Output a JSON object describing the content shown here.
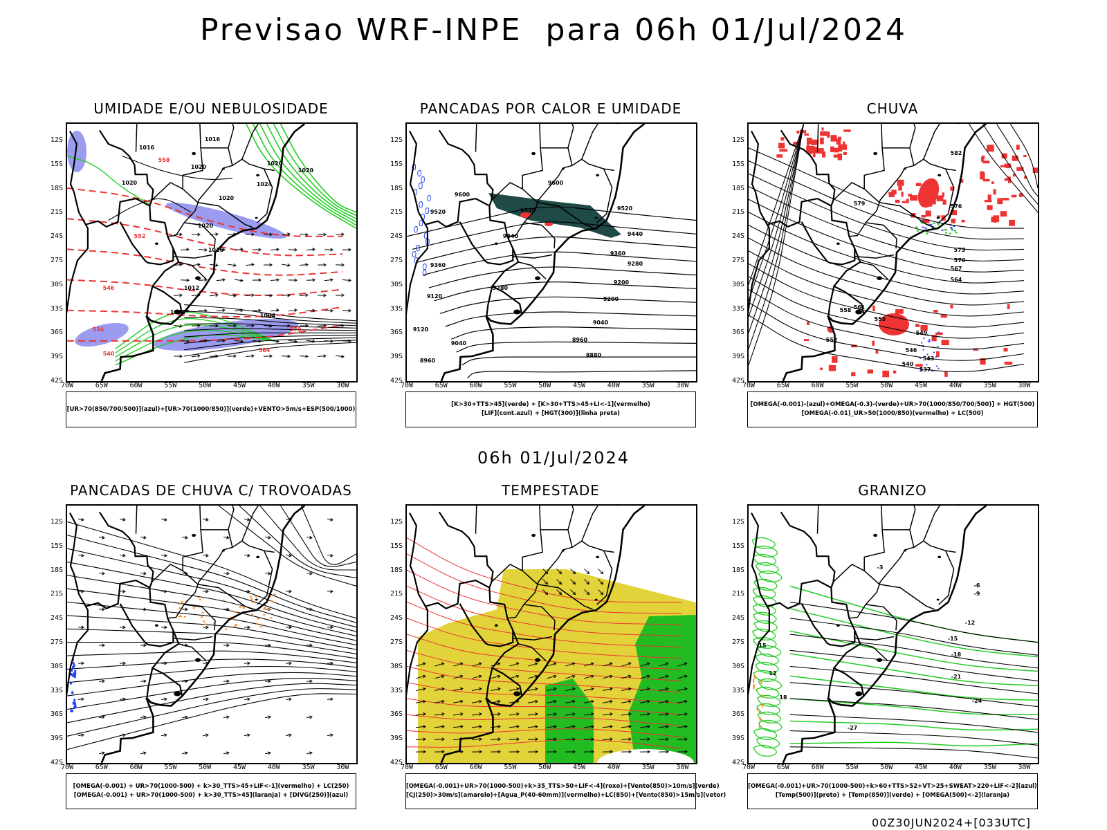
{
  "title": "Previsao WRF-INPE  para 06h 01/Jul/2024",
  "mid_title": "06h 01/Jul/2024",
  "footer": "00Z30JUN2024+[033UTC]",
  "lat_labels": [
    "12S",
    "15S",
    "18S",
    "21S",
    "24S",
    "27S",
    "30S",
    "33S",
    "36S",
    "39S",
    "42S"
  ],
  "lon_labels": [
    "70W",
    "65W",
    "60W",
    "55W",
    "50W",
    "45W",
    "40W",
    "35W",
    "30W"
  ],
  "panels": [
    {
      "title": "UMIDADE E/OU NEBULOSIDADE",
      "legend": [
        "[UR>70(850/700/500)](azul)+[UR>70(1000/850)](verde)+VENTO>5m/s+ESP(500/1000)"
      ],
      "contour_labels": [
        "1016",
        "1016",
        "1020",
        "1020",
        "1020",
        "1020",
        "1020",
        "1024",
        "1020",
        "1016",
        "1012",
        "1008",
        "1004",
        "570",
        "564",
        "558",
        "552",
        "546",
        "540",
        "534"
      ],
      "colors": {
        "fill": "#9b9bf0",
        "green": "#22cc22",
        "red": "#ee3333"
      }
    },
    {
      "title": "PANCADAS POR CALOR E UMIDADE",
      "legend": [
        "[K>30+TTS>45](verde) + [K>30+TTS>45+LI<-1](vermelho)",
        "[LIF](cont.azul) + [HGT(300)](linha preta)"
      ],
      "contour_labels": [
        "9600",
        "9600",
        "9520",
        "9520",
        "9520",
        "9440",
        "9440",
        "9360",
        "9360",
        "9280",
        "9280",
        "9200",
        "9200",
        "9120",
        "9120",
        "9040",
        "9040",
        "8960",
        "8960",
        "8880"
      ],
      "colors": {
        "fill": "#1f4a46",
        "blue": "#2244ee",
        "red": "#ee3333"
      }
    },
    {
      "title": "CHUVA",
      "legend": [
        "[OMEGA(-0.001)-(azul)+OMEGA(-0.3)-(verde)+UR>70(1000/850/700/500)] + HGT(500)",
        "[OMEGA(-0.01)_UR>50(1000/850)(vermelho) + LC(500)"
      ],
      "contour_labels": [
        "582",
        "579",
        "576",
        "573",
        "570",
        "567",
        "564",
        "561",
        "558",
        "555",
        "552",
        "549",
        "546",
        "543",
        "540",
        "537"
      ],
      "colors": {
        "red": "#ee3333",
        "blue": "#2244ee",
        "green": "#22cc22"
      }
    },
    {
      "title": "PANCADAS DE CHUVA C/ TROVOADAS",
      "legend": [
        "[OMEGA(-0.001) + UR>70(1000-500) + k>30_TTS>45+LIF<-1](vermelho) + LC(250)",
        "[OMEGA(-0.001) + UR>70(1000-500) + k>30_TTS>45](laranja) + [DIVG(250)](azul)"
      ],
      "contour_labels": [],
      "colors": {
        "orange": "#ff8a1f",
        "blue": "#2244ee",
        "red": "#ee3333"
      }
    },
    {
      "title": "TEMPESTADE",
      "legend": [
        "[OMEGA(-0.001)+UR>70(1000-500)+k>35_TTS>50+LIF<-4](roxo)+[Vento(850)>10m/s](verde)",
        "[CJ(250)>30m/s](amarelo)+[Agua_P(40-60mm)](vermelho)+LC(850)+[Vento(850)>15m/s](vetor)"
      ],
      "contour_labels": [],
      "colors": {
        "yellow": "#e3d33a",
        "green": "#22bb22",
        "red": "#ee3333"
      }
    },
    {
      "title": "GRANIZO",
      "legend": [
        "[OMEGA(-0.001)+UR>70(1000-500)+k>60+TTS>52+VT>25+SWEAT>220+LIF<-2](azul)",
        "[Temp(500)](preto) + [Temp(850)](verde) + [OMEGA(500)<-2](laranja)"
      ],
      "contour_labels": [
        "-3",
        "-6",
        "-9",
        "-12",
        "-15",
        "-18",
        "-21",
        "-24",
        "-27",
        "12",
        "15",
        "18"
      ],
      "colors": {
        "green": "#22cc22",
        "orange": "#ff8a1f"
      }
    }
  ]
}
